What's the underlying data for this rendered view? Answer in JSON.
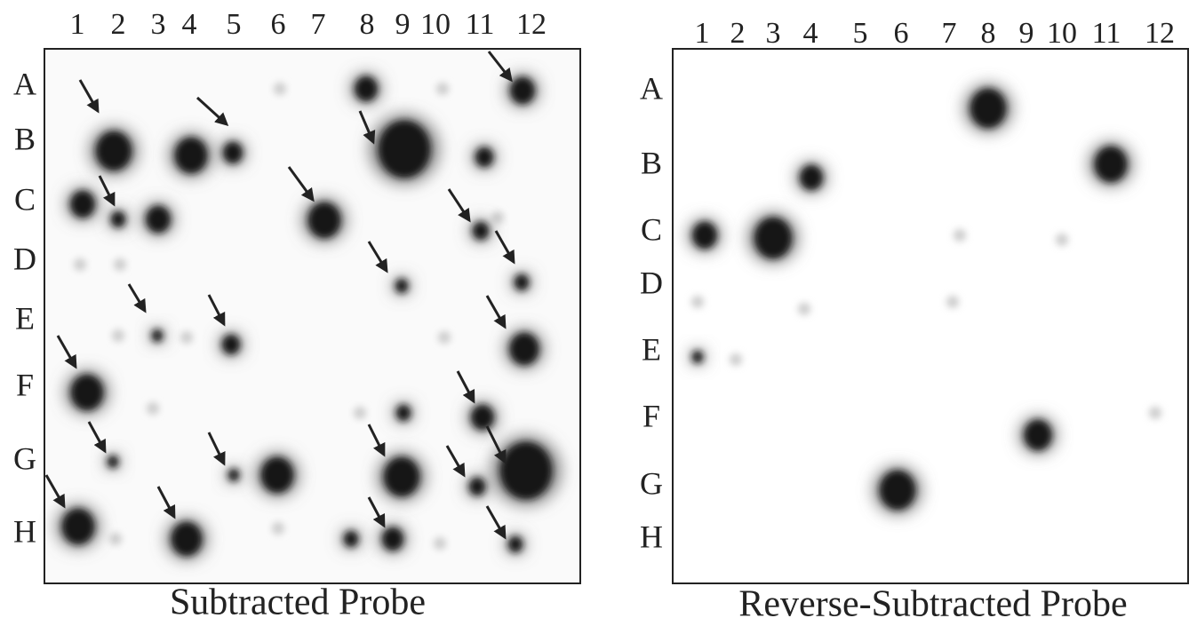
{
  "panels": [
    {
      "title": "Subtracted Probe",
      "columns": [
        "1",
        "2",
        "3",
        "4",
        "5",
        "6",
        "7",
        "8",
        "9",
        "10",
        "11",
        "12"
      ],
      "rows": [
        "A",
        "B",
        "C",
        "D",
        "E",
        "F",
        "G",
        "H"
      ]
    },
    {
      "title": "Reverse-Subtracted Probe",
      "columns": [
        "1",
        "2",
        "3",
        "4",
        "5",
        "6",
        "7",
        "8",
        "9",
        "10",
        "11",
        "12"
      ],
      "rows": [
        "A",
        "B",
        "C",
        "D",
        "E",
        "F",
        "G",
        "H"
      ]
    }
  ]
}
